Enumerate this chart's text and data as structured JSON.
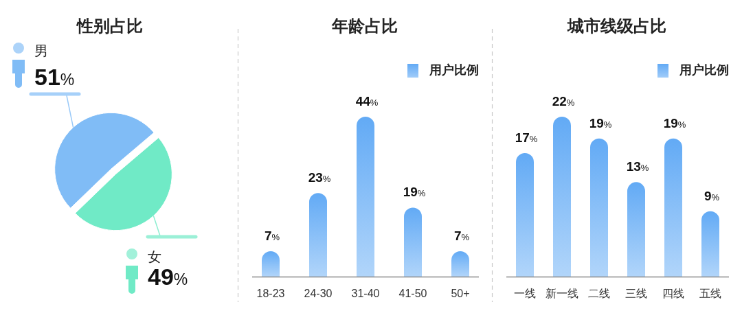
{
  "chart_data": [
    {
      "type": "pie",
      "title": "性别占比",
      "categories": [
        "男",
        "女"
      ],
      "values": [
        51,
        49
      ],
      "colors": [
        "#80bcf6",
        "#70eac6"
      ],
      "value_labels": [
        "51%",
        "49%"
      ]
    },
    {
      "type": "bar",
      "title": "年龄占比",
      "categories": [
        "18-23",
        "24-30",
        "31-40",
        "41-50",
        "50+"
      ],
      "series": [
        {
          "name": "用户比例",
          "color": "#62aaf5",
          "values": [
            7,
            23,
            44,
            19,
            7
          ],
          "value_labels": [
            "7%",
            "23%",
            "44%",
            "19%",
            "7%"
          ]
        }
      ],
      "legend": "top right"
    },
    {
      "type": "bar",
      "title": "城市线级占比",
      "categories": [
        "一线",
        "新一线",
        "二线",
        "三线",
        "四线",
        "五线"
      ],
      "series": [
        {
          "name": "用户比例",
          "color": "#62aaf5",
          "values": [
            17,
            22,
            19,
            13,
            19,
            9
          ],
          "value_labels": [
            "17%",
            "22%",
            "19%",
            "13%",
            "19%",
            "9%"
          ]
        }
      ],
      "legend": "top right"
    }
  ]
}
